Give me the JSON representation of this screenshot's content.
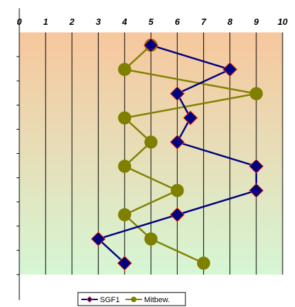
{
  "chart_data": {
    "type": "line",
    "orientation": "horizontal-values",
    "title": "",
    "xlabel": "",
    "ylabel": "",
    "xlim": [
      0,
      10
    ],
    "x_ticks": [
      "0",
      "1",
      "2",
      "3",
      "4",
      "5",
      "6",
      "7",
      "8",
      "9",
      "10"
    ],
    "x_axis_position": "top",
    "row_count": 10,
    "grid": "vertical gridlines only",
    "background": "vertical gradient, peach at top to pale green at bottom",
    "series": [
      {
        "name": "SGF1",
        "color": "#000080",
        "marker": "diamond",
        "marker_fill": "#000080",
        "marker_edge": "#ff3300",
        "values": [
          5,
          8,
          6,
          6.5,
          6,
          9,
          9,
          6,
          3,
          4
        ]
      },
      {
        "name": "Mitbew.",
        "color": "#808000",
        "marker": "circle",
        "marker_fill": "#808000",
        "marker_edge": "#808000",
        "values": [
          5,
          4,
          9,
          4,
          5,
          4,
          6,
          4,
          5,
          7
        ]
      }
    ],
    "legend": {
      "placement": "bottom-center",
      "entries": [
        "SGF1",
        "Mitbew."
      ]
    }
  }
}
